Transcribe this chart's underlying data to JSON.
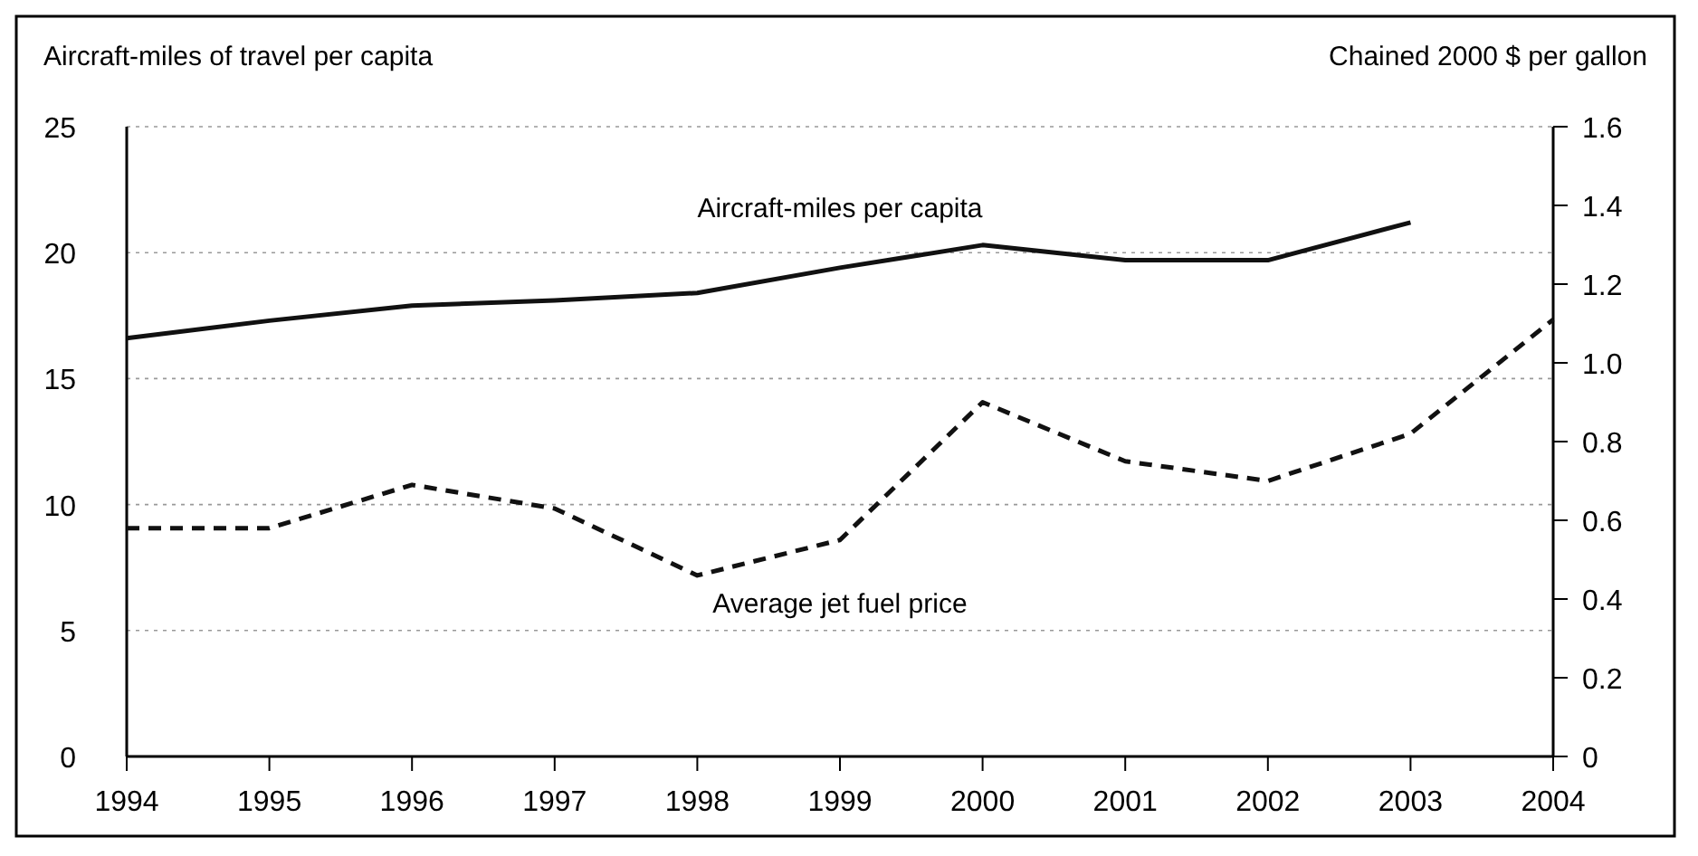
{
  "chart_data": {
    "type": "line",
    "ylabel": "Aircraft-miles of travel per capita",
    "y2label": "Chained 2000 $ per gallon",
    "x": [
      1994,
      1995,
      1996,
      1997,
      1998,
      1999,
      2000,
      2001,
      2002,
      2003,
      2004
    ],
    "xlim": [
      1994,
      2004
    ],
    "xticks": [
      1994,
      1995,
      1996,
      1997,
      1998,
      1999,
      2000,
      2001,
      2002,
      2003,
      2004
    ],
    "ylim": [
      0,
      25
    ],
    "yticks": [
      0,
      5,
      10,
      15,
      20,
      25
    ],
    "y2lim": [
      0,
      1.6
    ],
    "y2ticks": [
      0,
      {
        "value": 0.2,
        "label": "0.2"
      },
      {
        "value": 0.4,
        "label": "0.4"
      },
      {
        "value": 0.6,
        "label": "0.6"
      },
      {
        "value": 0.8,
        "label": "0.8"
      },
      {
        "value": 1,
        "label": "1.0"
      },
      {
        "value": 1.2,
        "label": "1.2"
      },
      {
        "value": 1.4,
        "label": "1.4"
      },
      {
        "value": 1.6,
        "label": "1.6"
      }
    ],
    "grid": "y",
    "legend": false,
    "series": [
      {
        "name": "Aircraft-miles per capita",
        "color": "#111111",
        "line_style": "solid",
        "values": [
          16.6,
          17.3,
          17.9,
          18.1,
          18.4,
          19.4,
          20.3,
          19.7,
          19.7,
          21.2,
          null
        ]
      },
      {
        "name": "Average jet fuel price",
        "color": "#111111",
        "axis": "y2",
        "line_style": "dashed",
        "values": [
          0.58,
          0.58,
          0.69,
          0.63,
          0.46,
          0.55,
          0.9,
          0.75,
          0.7,
          0.82,
          1.11
        ]
      }
    ]
  }
}
